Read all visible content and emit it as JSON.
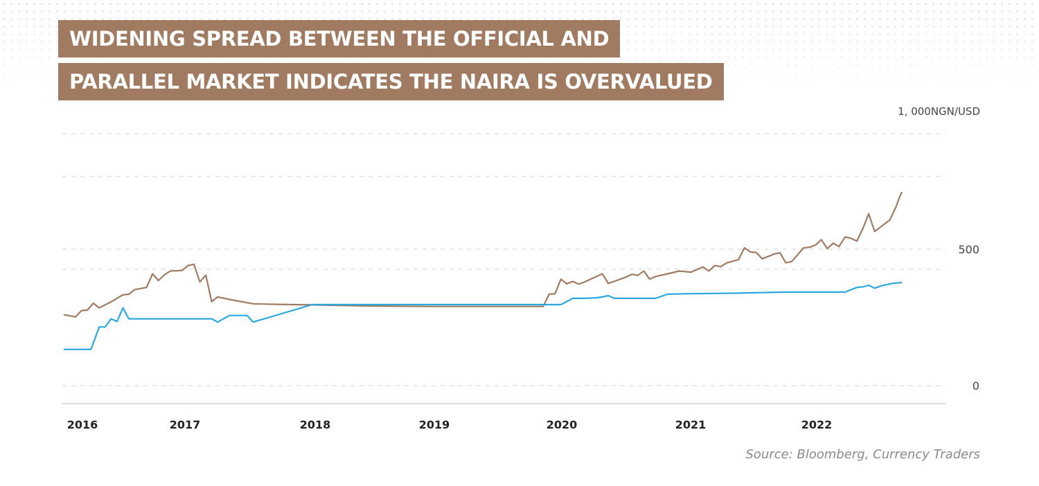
{
  "title_lines": [
    "WIDENING SPREAD BETWEEN THE OFFICIAL AND",
    "PARALLEL MARKET INDICATES THE NAIRA IS OVERVALUED"
  ],
  "unit_label": "1, 000NGN/USD",
  "source": "Source: Bloomberg, Currency Traders",
  "colors": {
    "title_band": "#a07a61",
    "parallel": "#a07a61",
    "official": "#29a8e0",
    "grid": "#d9d9d9"
  },
  "chart_data": {
    "type": "line",
    "title": "WIDENING SPREAD BETWEEN THE OFFICIAL AND PARALLEL MARKET INDICATES THE NAIRA IS OVERVALUED",
    "ylabel": "1, 000NGN/USD",
    "ylim": [
      0,
      1000
    ],
    "yticks": [
      0,
      500
    ],
    "xticks": [
      2016,
      2017,
      2018,
      2019,
      2020,
      2021,
      2022
    ],
    "grid": true,
    "legend": "none",
    "series": [
      {
        "color": "#a07a61",
        "x": [
          2015.9,
          2016.0,
          2016.05,
          2016.1,
          2016.15,
          2016.2,
          2016.3,
          2016.4,
          2016.45,
          2016.5,
          2016.6,
          2016.65,
          2016.7,
          2016.75,
          2016.8,
          2016.9,
          2016.95,
          2017.0,
          2017.05,
          2017.1,
          2017.15,
          2017.2,
          2017.3,
          2017.5,
          2017.7,
          2018.0,
          2018.5,
          2019.0,
          2019.5,
          2019.8,
          2019.95,
          2020.0,
          2020.05,
          2020.1,
          2020.15,
          2020.2,
          2020.25,
          2020.3,
          2020.45,
          2020.5,
          2020.55,
          2020.6,
          2020.65,
          2020.7,
          2020.75,
          2020.8,
          2020.85,
          2020.9,
          2021.0,
          2021.1,
          2021.2,
          2021.3,
          2021.35,
          2021.4,
          2021.45,
          2021.5,
          2021.6,
          2021.65,
          2021.7,
          2021.75,
          2021.8,
          2021.9,
          2021.95,
          2022.0,
          2022.05,
          2022.15,
          2022.2,
          2022.25,
          2022.3,
          2022.35,
          2022.4,
          2022.45,
          2022.5,
          2022.55,
          2022.6,
          2022.65,
          2022.7,
          2022.75,
          2022.85,
          2022.88,
          2022.9,
          2022.93,
          2022.96,
          2022.98
        ],
        "y": [
          260,
          252,
          275,
          277,
          302,
          285,
          307,
          333,
          335,
          352,
          360,
          410,
          385,
          406,
          420,
          422,
          440,
          445,
          380,
          405,
          308,
          325,
          316,
          300,
          298,
          296,
          292,
          290,
          290,
          290,
          290,
          335,
          337,
          390,
          373,
          382,
          372,
          380,
          410,
          375,
          382,
          390,
          398,
          408,
          404,
          420,
          390,
          400,
          410,
          420,
          416,
          435,
          420,
          440,
          436,
          450,
          462,
          505,
          490,
          488,
          465,
          482,
          487,
          450,
          455,
          505,
          507,
          515,
          535,
          502,
          522,
          510,
          545,
          540,
          530,
          575,
          630,
          565,
          598,
          608,
          627,
          655,
          690,
          710
        ]
      },
      {
        "color": "#29a8e0",
        "x": [
          2015.9,
          2016.0,
          2016.1,
          2016.13,
          2016.2,
          2016.25,
          2016.3,
          2016.35,
          2016.4,
          2016.45,
          2016.5,
          2016.6,
          2016.7,
          2016.8,
          2017.0,
          2017.1,
          2017.15,
          2017.2,
          2017.3,
          2017.35,
          2017.45,
          2017.5,
          2018.0,
          2019.0,
          2019.8,
          2019.95,
          2020.0,
          2020.1,
          2020.2,
          2020.3,
          2020.4,
          2020.45,
          2020.5,
          2020.55,
          2020.6,
          2020.7,
          2020.8,
          2020.85,
          2020.9,
          2021.0,
          2021.2,
          2021.4,
          2021.6,
          2021.7,
          2021.8,
          2022.0,
          2022.2,
          2022.3,
          2022.5,
          2022.6,
          2022.65,
          2022.7,
          2022.75,
          2022.8,
          2022.9,
          2022.98
        ],
        "y": [
          133,
          133,
          133,
          133,
          215,
          215,
          245,
          235,
          285,
          245,
          245,
          245,
          245,
          245,
          245,
          245,
          245,
          233,
          257,
          257,
          257,
          233,
          297,
          297,
          297,
          297,
          297,
          297,
          320,
          320,
          322,
          325,
          330,
          320,
          320,
          320,
          320,
          320,
          320,
          335,
          337,
          338,
          339,
          340,
          341,
          343,
          343,
          343,
          343,
          360,
          362,
          368,
          357,
          365,
          375,
          378
        ]
      }
    ]
  }
}
